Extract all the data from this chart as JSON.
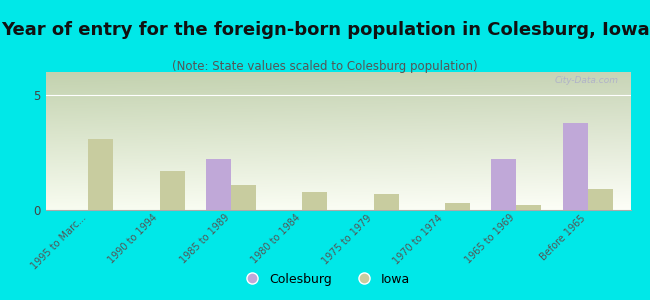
{
  "title": "Year of entry for the foreign-born population in Colesburg, Iowa",
  "subtitle": "(Note: State values scaled to Colesburg population)",
  "categories": [
    "1995 to Marc...",
    "1990 to 1994",
    "1985 to 1989",
    "1980 to 1984",
    "1975 to 1979",
    "1970 to 1974",
    "1965 to 1969",
    "Before 1965"
  ],
  "colesburg_values": [
    0,
    0,
    2.2,
    0,
    0,
    0,
    2.2,
    3.8
  ],
  "iowa_values": [
    3.1,
    1.7,
    1.1,
    0.8,
    0.7,
    0.3,
    0.2,
    0.9
  ],
  "colesburg_color": "#c0a8d8",
  "iowa_color": "#c8cc9f",
  "background_color": "#00e8e8",
  "ylim": [
    0,
    6
  ],
  "yticks": [
    0,
    5
  ],
  "bar_width": 0.35,
  "watermark": "City-Data.com",
  "legend_colesburg": "Colesburg",
  "legend_iowa": "Iowa",
  "title_fontsize": 13,
  "subtitle_fontsize": 8.5
}
